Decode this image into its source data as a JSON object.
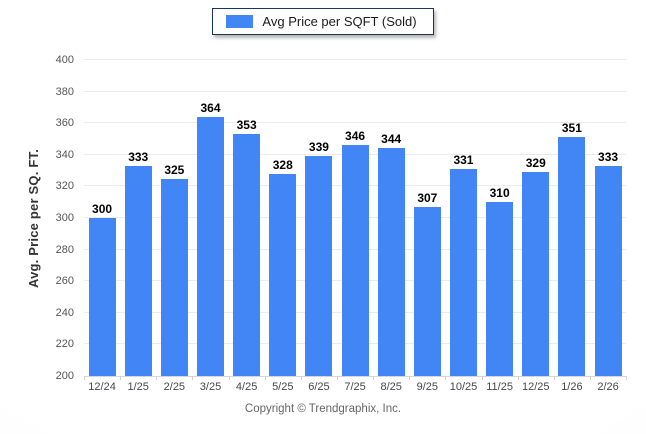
{
  "chart_data": {
    "type": "bar",
    "legend": "Avg Price per SQFT (Sold)",
    "legend_position": "top-center",
    "categories": [
      "12/24",
      "1/25",
      "2/25",
      "3/25",
      "4/25",
      "5/25",
      "6/25",
      "7/25",
      "8/25",
      "9/25",
      "10/25",
      "11/25",
      "12/25",
      "1/26",
      "2/26"
    ],
    "values": [
      300,
      333,
      325,
      364,
      353,
      328,
      339,
      346,
      344,
      307,
      331,
      310,
      329,
      351,
      333
    ],
    "xlabel": "",
    "ylabel": "Avg. Price per SQ. FT.",
    "ylim": [
      200,
      400
    ],
    "ytick_step": 20,
    "y_ticks": [
      200,
      220,
      240,
      260,
      280,
      300,
      320,
      340,
      360,
      380,
      400
    ],
    "grid": "horizontal",
    "bar_color": "#4285f4",
    "gridline_color": "#ebebeb",
    "footer": "Copyright © Trendgraphix, Inc."
  }
}
